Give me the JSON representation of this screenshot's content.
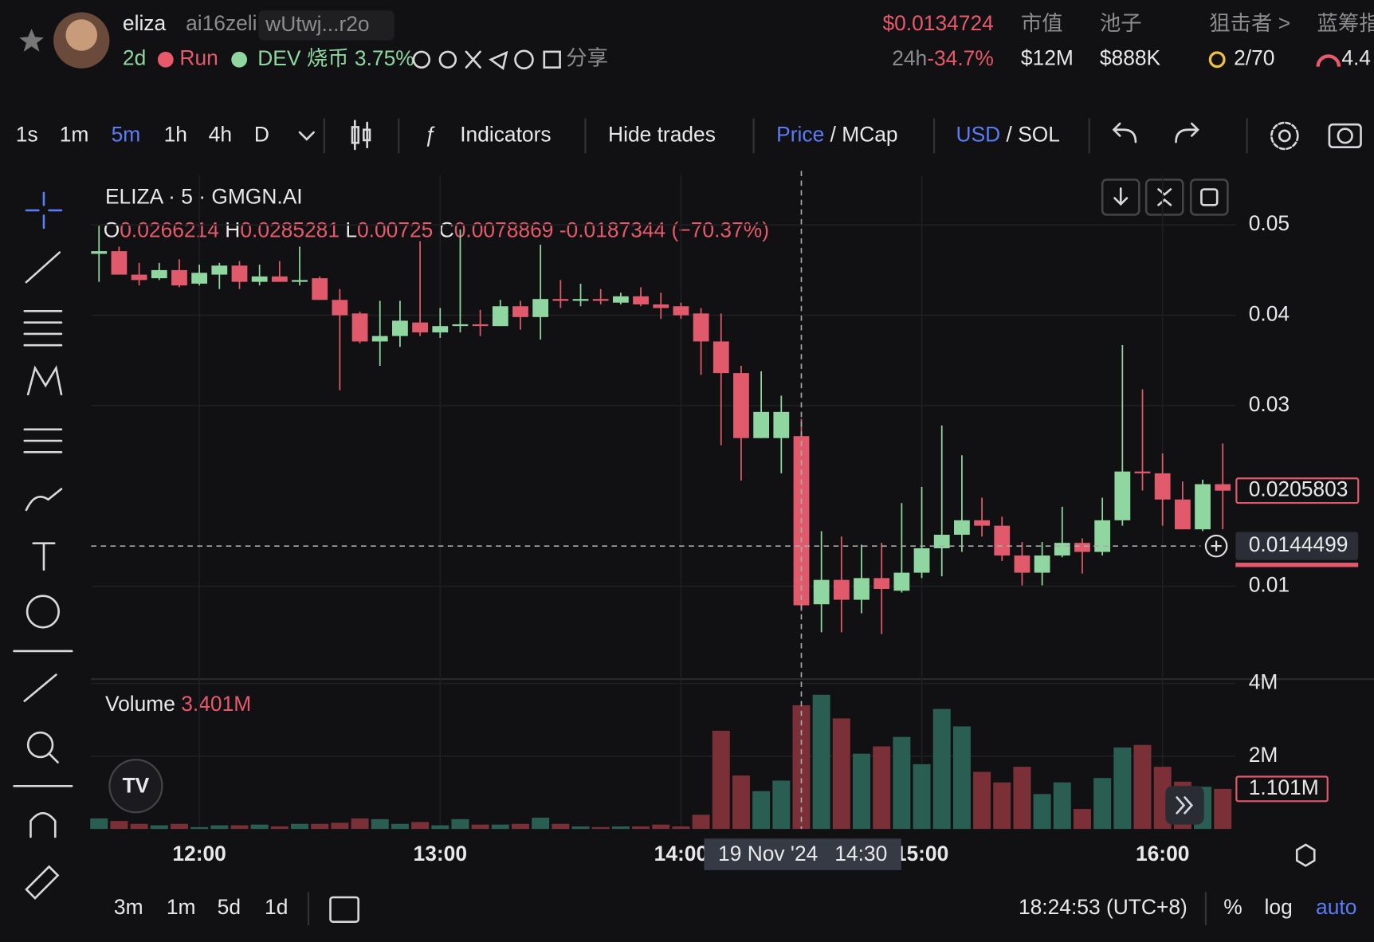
{
  "header": {
    "name": "eliza",
    "handle": "ai16zeli",
    "address": "wUtwj...r2o",
    "age": "2d",
    "run": "Run",
    "dev": "DEV",
    "dev_burn": "烧币",
    "dev_burn_pct": "3.75%",
    "share": "分享",
    "price": "$0.0134724",
    "change_period": "24h",
    "change": "-34.7%",
    "stats": [
      {
        "label": "市值",
        "value": "$12M"
      },
      {
        "label": "池子",
        "value": "$888K"
      },
      {
        "label": "狙击者 >",
        "value": "2/70"
      },
      {
        "label": "蓝筹指",
        "value": "4.4"
      }
    ]
  },
  "toolbar": {
    "intervals": [
      "1s",
      "1m",
      "5m",
      "1h",
      "4h",
      "D"
    ],
    "indicators": "Indicators",
    "hide_trades": "Hide trades",
    "price": "Price",
    "slash": "/",
    "mcap": "MCap",
    "usd": "USD",
    "sol": "SOL"
  },
  "footer": {
    "ranges": [
      "3m",
      "1m",
      "5d",
      "1d"
    ],
    "clock": "18:24:53 (UTC+8)",
    "percent": "%",
    "log": "log",
    "auto": "auto"
  },
  "chart_data": {
    "type": "candlestick",
    "title": "ELIZA · 5 · GMGN.AI",
    "ohlc_letters": [
      "O",
      "H",
      "L",
      "C"
    ],
    "change_label": "-0.0187344 (−70.37%)",
    "volume_title": "Volume",
    "x": [
      "11:35",
      "11:40",
      "11:45",
      "11:50",
      "11:55",
      "12:00",
      "12:05",
      "12:10",
      "12:15",
      "12:20",
      "12:25",
      "12:30",
      "12:35",
      "12:40",
      "12:45",
      "12:50",
      "12:55",
      "13:00",
      "13:05",
      "13:10",
      "13:15",
      "13:20",
      "13:25",
      "13:30",
      "13:35",
      "13:40",
      "13:45",
      "13:50",
      "13:55",
      "14:00",
      "14:05",
      "14:10",
      "14:15",
      "14:20",
      "14:25",
      "14:30",
      "14:35",
      "14:40",
      "14:45",
      "14:50",
      "14:55",
      "15:00",
      "15:05",
      "15:10",
      "15:15",
      "15:20",
      "15:25",
      "15:30",
      "15:35",
      "15:40",
      "15:45",
      "15:50",
      "15:55",
      "16:00",
      "16:05",
      "16:10",
      "16:15"
    ],
    "open": [
      0.0468,
      0.0471,
      0.0445,
      0.0441,
      0.045,
      0.0435,
      0.0445,
      0.0455,
      0.0437,
      0.0443,
      0.0437,
      0.0441,
      0.0417,
      0.0402,
      0.0371,
      0.0377,
      0.0392,
      0.0381,
      0.0389,
      0.039,
      0.0388,
      0.041,
      0.0398,
      0.0418,
      0.0416,
      0.0418,
      0.0414,
      0.0421,
      0.0412,
      0.041,
      0.0402,
      0.0371,
      0.0336,
      0.0264,
      0.0264,
      0.0266214,
      0.008,
      0.0107,
      0.0085,
      0.0109,
      0.0095,
      0.0115,
      0.0142,
      0.0157,
      0.0173,
      0.0167,
      0.0134,
      0.0115,
      0.0134,
      0.0148,
      0.0138,
      0.0173,
      0.0227,
      0.0225,
      0.0196,
      0.0163,
      0.0213
    ],
    "high": [
      0.0499,
      0.0476,
      0.0458,
      0.0458,
      0.0462,
      0.0456,
      0.0458,
      0.046,
      0.0456,
      0.046,
      0.0476,
      0.0443,
      0.0429,
      0.0404,
      0.0416,
      0.0416,
      0.0482,
      0.0408,
      0.0495,
      0.0406,
      0.0417,
      0.0416,
      0.0478,
      0.0439,
      0.0435,
      0.0429,
      0.0425,
      0.0431,
      0.0425,
      0.0414,
      0.0408,
      0.0402,
      0.0344,
      0.0338,
      0.0311,
      0.0285281,
      0.0161,
      0.0155,
      0.0146,
      0.0148,
      0.0192,
      0.021,
      0.0278,
      0.0245,
      0.0198,
      0.0177,
      0.0149,
      0.0149,
      0.0188,
      0.0153,
      0.0198,
      0.0367,
      0.0318,
      0.0247,
      0.0216,
      0.0218,
      0.0258
    ],
    "low": [
      0.0437,
      0.0445,
      0.0433,
      0.0439,
      0.0431,
      0.0433,
      0.0429,
      0.0429,
      0.0433,
      0.0437,
      0.0433,
      0.0417,
      0.0317,
      0.0369,
      0.0344,
      0.0365,
      0.0377,
      0.0375,
      0.0381,
      0.0377,
      0.0388,
      0.0384,
      0.0373,
      0.0408,
      0.041,
      0.0412,
      0.0412,
      0.041,
      0.0396,
      0.0396,
      0.0334,
      0.0256,
      0.0217,
      0.0264,
      0.0225,
      0.00725,
      0.0049,
      0.0049,
      0.007,
      0.0047,
      0.0093,
      0.0109,
      0.0111,
      0.0138,
      0.0155,
      0.0128,
      0.0101,
      0.0101,
      0.0132,
      0.0114,
      0.0134,
      0.0167,
      0.0206,
      0.0167,
      0.0163,
      0.0161,
      0.0163
    ],
    "close": [
      0.0471,
      0.0445,
      0.0439,
      0.045,
      0.0433,
      0.0447,
      0.0455,
      0.0437,
      0.0443,
      0.0437,
      0.0439,
      0.0417,
      0.04,
      0.0371,
      0.0377,
      0.0394,
      0.0381,
      0.0388,
      0.039,
      0.0389,
      0.041,
      0.0398,
      0.0418,
      0.0416,
      0.0418,
      0.0416,
      0.0421,
      0.0412,
      0.0408,
      0.04,
      0.0371,
      0.0336,
      0.0264,
      0.0293,
      0.0293,
      0.0078869,
      0.0107,
      0.0085,
      0.0109,
      0.0097,
      0.0115,
      0.0142,
      0.0157,
      0.0173,
      0.0167,
      0.0134,
      0.0115,
      0.0134,
      0.0148,
      0.0138,
      0.0173,
      0.0227,
      0.0225,
      0.0196,
      0.0163,
      0.0213,
      0.0205803
    ],
    "volume": [
      290000,
      220000,
      140000,
      100000,
      140000,
      50000,
      100000,
      100000,
      120000,
      70000,
      140000,
      140000,
      170000,
      290000,
      270000,
      140000,
      190000,
      100000,
      270000,
      120000,
      120000,
      140000,
      310000,
      140000,
      70000,
      50000,
      70000,
      70000,
      120000,
      70000,
      390000,
      2700000,
      1470000,
      1040000,
      1330000,
      3401000,
      3690000,
      3040000,
      2070000,
      2270000,
      2530000,
      1780000,
      3300000,
      2820000,
      1570000,
      1280000,
      1710000,
      960000,
      1280000,
      550000,
      1400000,
      2240000,
      2310000,
      1710000,
      1300000,
      1160000,
      1101000
    ],
    "volume_labels": [
      null,
      null,
      null,
      null,
      null,
      null,
      null,
      null,
      null,
      null,
      null,
      null,
      null,
      null,
      null,
      null,
      null,
      null,
      null,
      null,
      null,
      null,
      null,
      null,
      null,
      null,
      null,
      null,
      null,
      null,
      null,
      null,
      null,
      null,
      null,
      "3.401M",
      null,
      null,
      null,
      null,
      null,
      null,
      null,
      null,
      null,
      null,
      null,
      null,
      null,
      null,
      null,
      null,
      null,
      null,
      null,
      null,
      "1.101M"
    ],
    "ylim": [
      0.0002,
      0.0555
    ],
    "yticks": [
      0.01,
      0.03,
      0.04,
      0.05
    ],
    "vlim": [
      0,
      4120000
    ],
    "vticks": [
      {
        "value": 2000000,
        "label": "2M"
      },
      {
        "value": 4000000,
        "label": "4M"
      }
    ],
    "xticks": [
      "12:00",
      "13:00",
      "14:00",
      "15:00",
      "16:00"
    ],
    "crosshair": {
      "price": 0.0144499,
      "date": "19 Nov '24",
      "time": "14:30"
    },
    "up_color": "#8fd6a0",
    "down_color": "#e05a6c",
    "up_volume_color": "#2a5e52",
    "down_volume_color": "#7a3036",
    "grid": true
  }
}
